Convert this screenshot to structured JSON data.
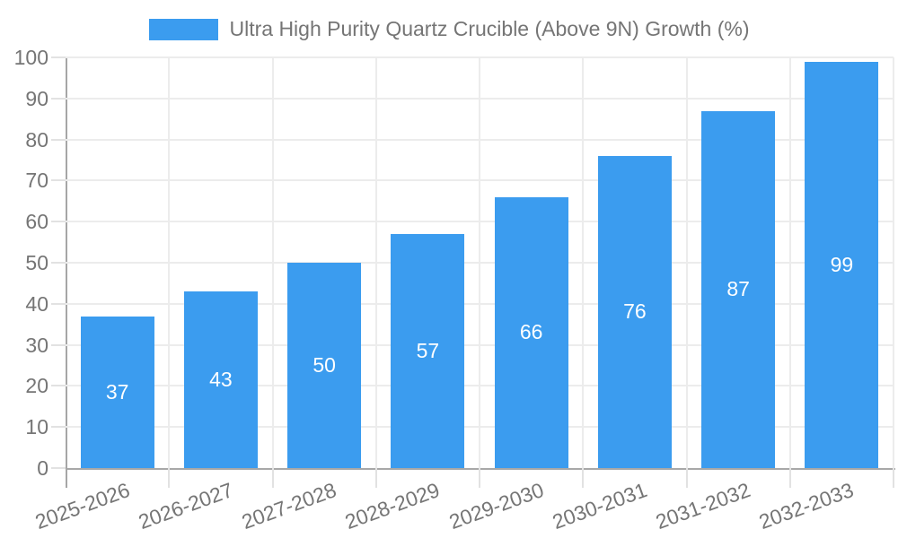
{
  "chart_data": {
    "type": "bar",
    "legend": {
      "position": "top",
      "label": "Ultra High Purity Quartz Crucible (Above 9N) Growth (%)"
    },
    "categories": [
      "2025-2026",
      "2026-2027",
      "2027-2028",
      "2028-2029",
      "2029-2030",
      "2030-2031",
      "2031-2032",
      "2032-2033"
    ],
    "series": [
      {
        "name": "Ultra High Purity Quartz Crucible (Above 9N) Growth (%)",
        "values": [
          37,
          43,
          50,
          57,
          66,
          76,
          87,
          99
        ]
      }
    ],
    "xlabel": "",
    "ylabel": "",
    "ylim": [
      0,
      100
    ],
    "yticks": [
      0,
      10,
      20,
      30,
      40,
      50,
      60,
      70,
      80,
      90,
      100
    ],
    "grid": true,
    "x_tick_rotation_deg": -20,
    "value_labels": {
      "show": true,
      "position": "center",
      "color": "#ffffff"
    },
    "colors": {
      "bar": "#3B9CEF",
      "axis": "#a6a6a6",
      "gridline": "#ececec",
      "tick": "#e2e2e2",
      "text": "#757575",
      "value_label": "#ffffff"
    }
  }
}
